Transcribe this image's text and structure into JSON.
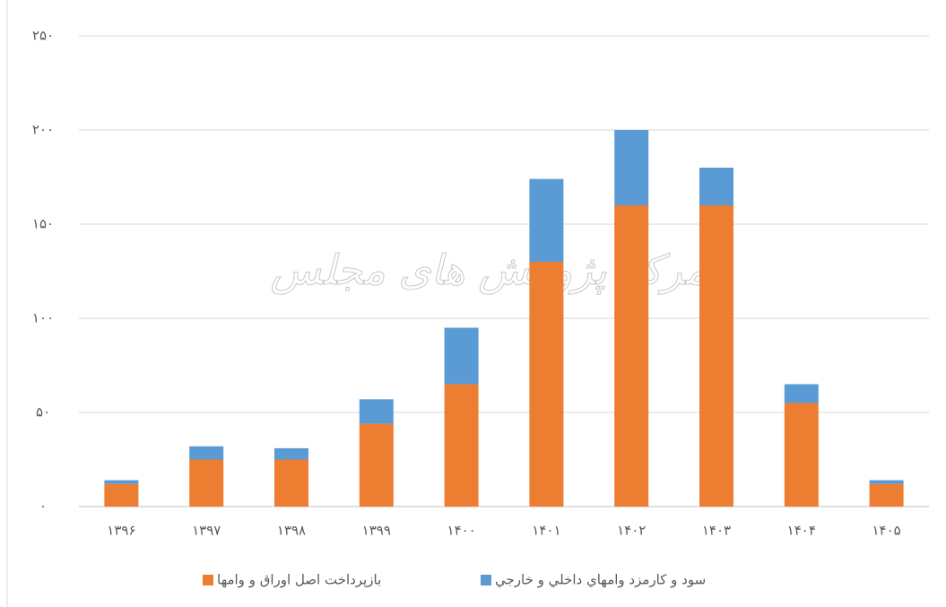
{
  "chart_data": {
    "type": "stacked_bar",
    "watermark": "مرکز پژوهش های مجلس",
    "categories": [
      "۱۳۹۶",
      "۱۳۹۷",
      "۱۳۹۸",
      "۱۳۹۹",
      "۱۴۰۰",
      "۱۴۰۱",
      "۱۴۰۲",
      "۱۴۰۳",
      "۱۴۰۴",
      "۱۴۰۵"
    ],
    "series": [
      {
        "name": "بازپرداخت اصل اوراق و وامها",
        "color": "#ed7d31",
        "values": [
          12,
          25,
          25,
          44,
          65,
          130,
          160,
          160,
          55,
          12
        ]
      },
      {
        "name": "سود و کارمزد وامهاي داخلي و خارجي",
        "color": "#5b9bd5",
        "values": [
          2,
          7,
          6,
          13,
          30,
          44,
          40,
          20,
          10,
          2
        ]
      }
    ],
    "ylim": [
      0,
      250
    ],
    "yticks": [
      {
        "value": 0,
        "label": "٠"
      },
      {
        "value": 50,
        "label": "۵٠"
      },
      {
        "value": 100,
        "label": "۱٠٠"
      },
      {
        "value": 150,
        "label": "۱۵٠"
      },
      {
        "value": 200,
        "label": "۲٠٠"
      },
      {
        "value": 250,
        "label": "۲۵٠"
      }
    ],
    "grid": true,
    "legend": "bottom"
  }
}
